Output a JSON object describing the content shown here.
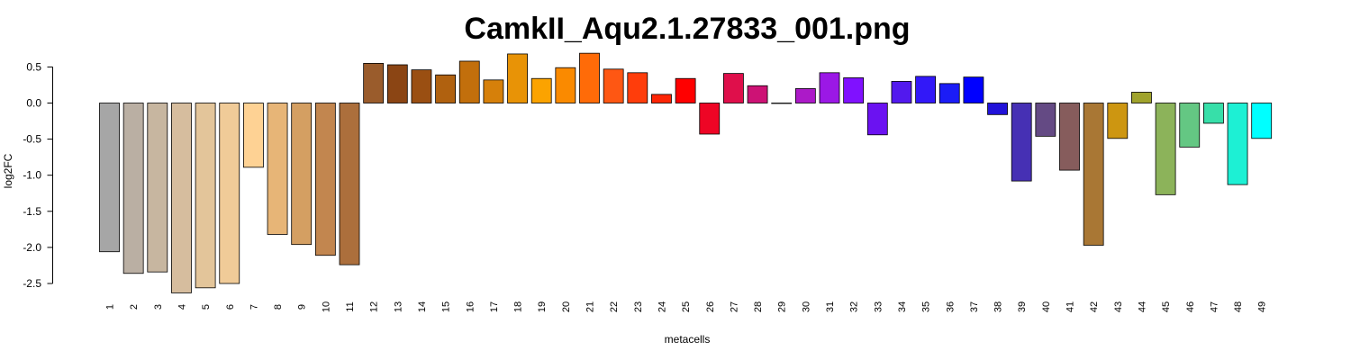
{
  "chart_data": {
    "type": "bar",
    "title": "CamkII_Aqu2.1.27833_001.png",
    "xlabel": "metacells",
    "ylabel": "log2FC",
    "ylim": [
      -2.75,
      0.75
    ],
    "yticks": [
      0.5,
      0.0,
      -0.5,
      -1.0,
      -1.5,
      -2.0,
      -2.5
    ],
    "ytick_labels": [
      "0.5",
      "0.0",
      "-0.5",
      "-1.0",
      "-1.5",
      "-2.0",
      "-2.5"
    ],
    "grid": false,
    "categories": [
      "1",
      "2",
      "3",
      "4",
      "5",
      "6",
      "7",
      "8",
      "9",
      "10",
      "11",
      "12",
      "13",
      "14",
      "15",
      "16",
      "17",
      "18",
      "19",
      "20",
      "21",
      "22",
      "23",
      "24",
      "25",
      "26",
      "27",
      "28",
      "29",
      "30",
      "31",
      "32",
      "33",
      "34",
      "35",
      "36",
      "37",
      "38",
      "39",
      "40",
      "41",
      "42",
      "43",
      "44",
      "45",
      "46",
      "47",
      "48",
      "49"
    ],
    "values": [
      -2.06,
      -2.36,
      -2.34,
      -2.63,
      -2.56,
      -2.5,
      -0.89,
      -1.82,
      -1.96,
      -2.11,
      -2.24,
      0.55,
      0.53,
      0.46,
      0.39,
      0.58,
      0.32,
      0.68,
      0.34,
      0.49,
      0.69,
      0.47,
      0.42,
      0.12,
      0.34,
      -0.43,
      0.41,
      0.24,
      0.0,
      0.2,
      0.42,
      0.35,
      -0.44,
      0.3,
      0.37,
      0.27,
      0.36,
      -0.16,
      -1.08,
      -0.46,
      -0.93,
      -1.97,
      -0.49,
      0.15,
      -1.27,
      -0.61,
      -0.28,
      -1.13,
      -0.49
    ],
    "colors": [
      "#a6a6a6",
      "#baafa3",
      "#c7b6a0",
      "#d6bd9e",
      "#e3c59a",
      "#f0cb98",
      "#fed294",
      "#e7b577",
      "#d49f62",
      "#c2864f",
      "#ac6f3c",
      "#9a5c2c",
      "#8b4514",
      "#9a4f12",
      "#b0610f",
      "#c26f0c",
      "#d6800a",
      "#e89306",
      "#fba300",
      "#fa8a00",
      "#ff6b08",
      "#fe5713",
      "#ff3d0b",
      "#fd2505",
      "#ff0000",
      "#ee0525",
      "#df0f4b",
      "#cd1275",
      "#c01a9b",
      "#ac1ac8",
      "#9b18e6",
      "#8011ff",
      "#6b12f1",
      "#5219ee",
      "#3218f8",
      "#1b1cf6",
      "#0000ff",
      "#2112d9",
      "#4630b4",
      "#644a84",
      "#865c5c",
      "#a97734",
      "#cd9611",
      "#a0a32c",
      "#8cb35a",
      "#64c783",
      "#37dfa9",
      "#1df0d4",
      "#00ffff"
    ]
  }
}
